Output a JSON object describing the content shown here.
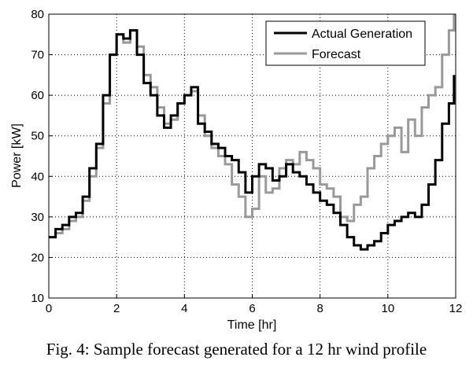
{
  "chart_data": {
    "type": "line",
    "title": "",
    "xlabel": "Time [hr]",
    "ylabel": "Power [kW]",
    "xlim": [
      0,
      12
    ],
    "ylim": [
      10,
      80
    ],
    "xticks": [
      0,
      2,
      4,
      6,
      8,
      10,
      12
    ],
    "yticks": [
      10,
      20,
      30,
      40,
      50,
      60,
      70,
      80
    ],
    "grid": true,
    "legend_position": "top-right",
    "series": [
      {
        "name": "Actual Generation",
        "color": "#000000",
        "x": [
          0,
          0.2,
          0.4,
          0.6,
          0.8,
          1.0,
          1.2,
          1.4,
          1.6,
          1.8,
          2.0,
          2.2,
          2.4,
          2.6,
          2.8,
          3.0,
          3.2,
          3.4,
          3.6,
          3.8,
          4.0,
          4.2,
          4.4,
          4.6,
          4.8,
          5.0,
          5.2,
          5.4,
          5.6,
          5.8,
          6.0,
          6.2,
          6.4,
          6.6,
          6.8,
          7.0,
          7.2,
          7.4,
          7.6,
          7.8,
          8.0,
          8.2,
          8.4,
          8.6,
          8.8,
          9.0,
          9.2,
          9.4,
          9.6,
          9.8,
          10.0,
          10.2,
          10.4,
          10.6,
          10.8,
          11.0,
          11.2,
          11.4,
          11.6,
          11.8,
          11.95
        ],
        "values": [
          25,
          27,
          28,
          30,
          31,
          35,
          42,
          48,
          60,
          70,
          75,
          74,
          76,
          70,
          63,
          60,
          55,
          52,
          55,
          58,
          60,
          62,
          53,
          51,
          48,
          47,
          45,
          44,
          41,
          36,
          40,
          43,
          42,
          39,
          40,
          43,
          41,
          40,
          38,
          36,
          34,
          33,
          31,
          28,
          25,
          23,
          22,
          23,
          24,
          26,
          28,
          29,
          30,
          31,
          30,
          33,
          38,
          44,
          53,
          58,
          65
        ]
      },
      {
        "name": "Forecast",
        "color": "#999999",
        "x": [
          0,
          0.2,
          0.4,
          0.6,
          0.8,
          1.0,
          1.2,
          1.4,
          1.6,
          1.8,
          2.0,
          2.2,
          2.4,
          2.6,
          2.8,
          3.0,
          3.2,
          3.4,
          3.6,
          3.8,
          4.0,
          4.2,
          4.4,
          4.6,
          4.8,
          5.0,
          5.2,
          5.4,
          5.6,
          5.8,
          6.0,
          6.2,
          6.4,
          6.6,
          6.8,
          7.0,
          7.2,
          7.4,
          7.6,
          7.8,
          8.0,
          8.2,
          8.4,
          8.6,
          8.8,
          9.0,
          9.2,
          9.4,
          9.6,
          9.8,
          10.0,
          10.2,
          10.4,
          10.6,
          10.8,
          11.0,
          11.2,
          11.4,
          11.6,
          11.8,
          11.95
        ],
        "values": [
          25,
          26,
          27,
          29,
          30,
          34,
          40,
          47,
          58,
          70,
          75,
          73,
          76,
          72,
          65,
          62,
          57,
          53,
          54,
          58,
          60,
          61,
          55,
          50,
          47,
          45,
          43,
          38,
          35,
          30,
          32,
          40,
          36,
          37,
          42,
          44,
          43,
          46,
          44,
          42,
          38,
          37,
          35,
          30,
          29,
          33,
          35,
          42,
          45,
          48,
          50,
          52,
          46,
          54,
          50,
          57,
          60,
          62,
          70,
          76,
          80
        ]
      }
    ]
  },
  "caption": "Fig. 4: Sample forecast generated for a 12 hr wind profile"
}
